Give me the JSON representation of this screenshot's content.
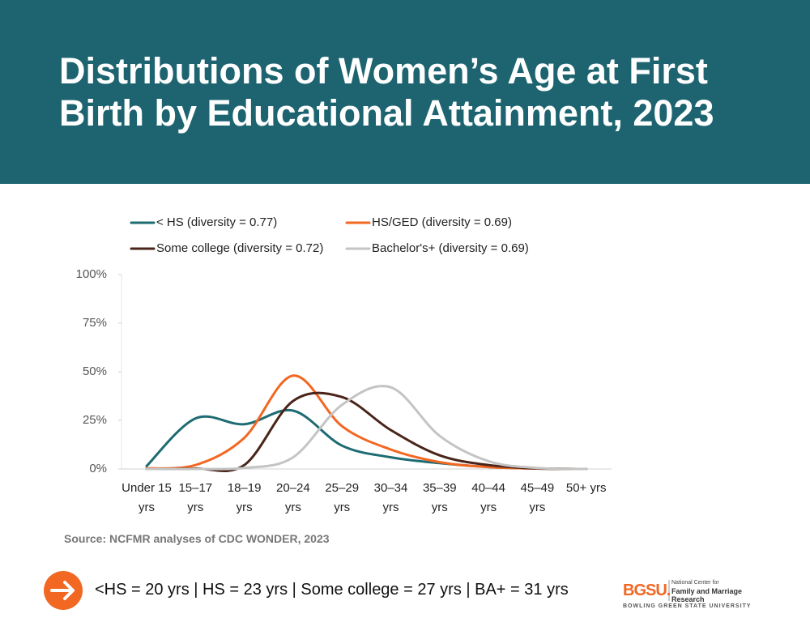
{
  "chart_data": {
    "type": "line",
    "title": "Distributions of Women’s Age at First Birth by Educational Attainment, 2023",
    "categories": [
      "Under 15 yrs",
      "15–17 yrs",
      "18–19 yrs",
      "20–24 yrs",
      "25–29 yrs",
      "30–34 yrs",
      "35–39 yrs",
      "40–44 yrs",
      "45–49 yrs",
      "50+ yrs"
    ],
    "series": [
      {
        "name": "< HS (diversity = 0.77)",
        "color": "#1e6b72",
        "values": [
          1.5,
          26,
          23,
          30,
          12,
          6,
          3,
          1,
          0.2,
          0
        ]
      },
      {
        "name": "HS/GED (diversity = 0.69)",
        "color": "#f26722",
        "values": [
          0.3,
          2,
          16,
          48,
          22,
          10,
          3.5,
          1,
          0.2,
          0
        ]
      },
      {
        "name": "Some college (diversity = 0.72)",
        "color": "#4a2419",
        "values": [
          0,
          0.2,
          2,
          35,
          37,
          20,
          7,
          2,
          0.3,
          0
        ]
      },
      {
        "name": "Bachelor's+ (diversity = 0.69)",
        "color": "#c4c4c4",
        "values": [
          0,
          0,
          0.5,
          6,
          33,
          42,
          17,
          4,
          0.5,
          0
        ]
      }
    ],
    "ylim": [
      0,
      100
    ],
    "yticks": [
      {
        "value": 0,
        "label": "0%"
      },
      {
        "value": 25,
        "label": "25%"
      },
      {
        "value": 50,
        "label": "50%"
      },
      {
        "value": 75,
        "label": "75%"
      },
      {
        "value": 100,
        "label": "100%"
      }
    ],
    "source": "Source: NCFMR analyses of CDC WONDER, 2023"
  },
  "footer": {
    "takeaway": "<HS = 20 yrs | HS = 23 yrs | Some college = 27 yrs | BA+ = 31 yrs",
    "logo": "BGSU.",
    "center_line1": "National Center for",
    "center_line2": "Family and Marriage Research",
    "university": "BOWLING GREEN STATE UNIVERSITY"
  }
}
